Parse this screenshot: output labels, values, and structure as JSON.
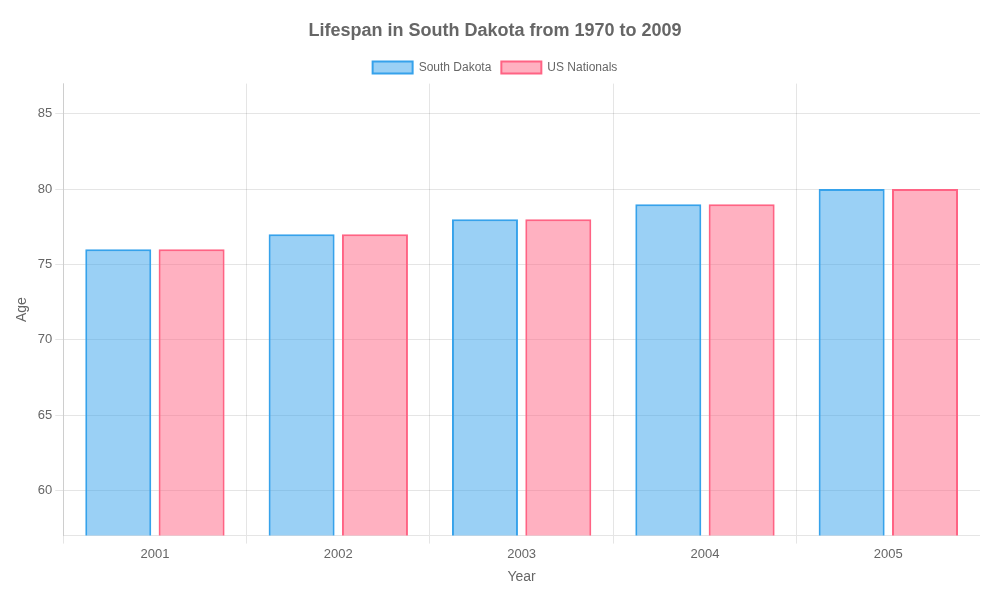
{
  "chart_data": {
    "type": "bar",
    "title": "Lifespan in South Dakota from 1970 to 2009",
    "xlabel": "Year",
    "ylabel": "Age",
    "categories": [
      "2001",
      "2002",
      "2003",
      "2004",
      "2005"
    ],
    "series": [
      {
        "name": "South Dakota",
        "values": [
          76,
          77,
          78,
          79,
          80
        ]
      },
      {
        "name": "US Nationals",
        "values": [
          76,
          77,
          78,
          79,
          80
        ]
      }
    ],
    "ylim": [
      57,
      87
    ],
    "yticks": [
      60,
      65,
      70,
      75,
      80,
      85
    ],
    "grid": true,
    "legend": "top"
  }
}
